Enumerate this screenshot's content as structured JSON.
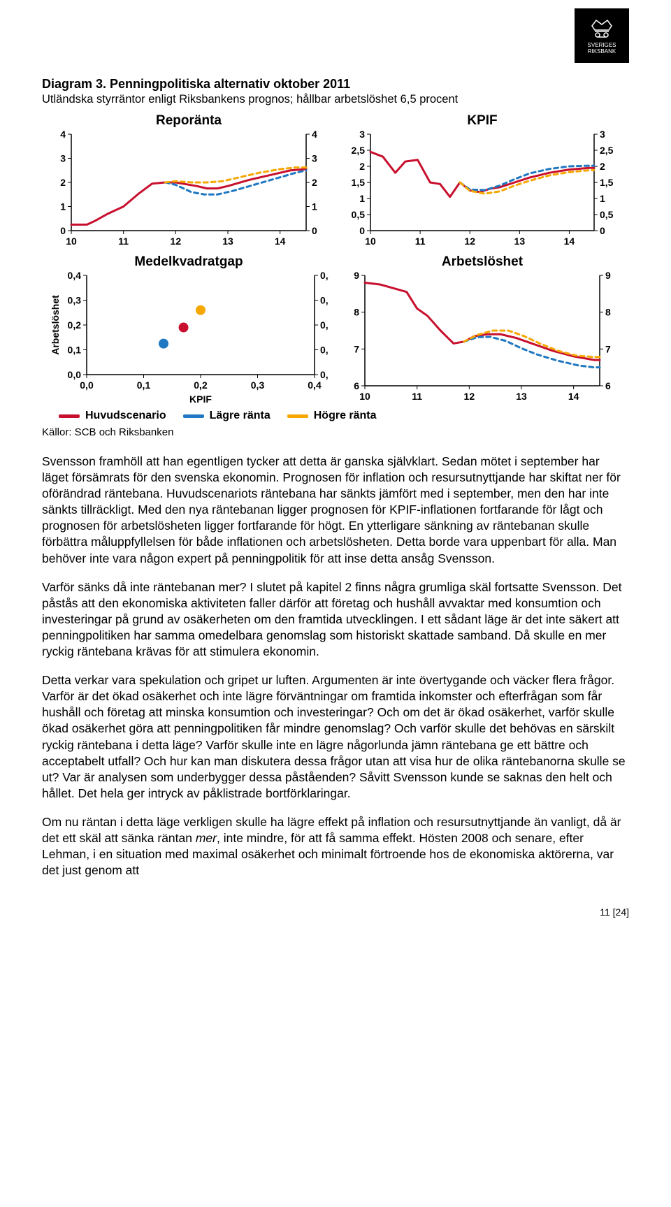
{
  "logo": {
    "line1": "SVERIGES",
    "line2": "RIKSBANK"
  },
  "figure_header": {
    "title": "Diagram 3. Penningpolitiska alternativ oktober 2011",
    "subtitle": "Utländska styrräntor enligt Riksbankens prognos; hållbar arbetslöshet 6,5 procent"
  },
  "legend": {
    "items": [
      {
        "label": "Huvudscenario",
        "color": "#c8102e"
      },
      {
        "label": "Lägre ränta",
        "color": "#1f78c1"
      },
      {
        "label": "Högre ränta",
        "color": "#f6a700"
      }
    ]
  },
  "sources": "Källor: SCB och Riksbanken",
  "charts": {
    "reporanta": {
      "title": "Reporänta",
      "type": "line",
      "xlim": [
        10,
        14.5
      ],
      "xticks": [
        10,
        11,
        12,
        13,
        14
      ],
      "ylim": [
        0,
        4
      ],
      "yticks": [
        0,
        1,
        2,
        3,
        4
      ],
      "axis_color": "#000000",
      "series": [
        {
          "name": "Huvudscenario",
          "color": "#c8102e",
          "dash": "",
          "width": 3,
          "pts": [
            [
              10,
              0.25
            ],
            [
              10.3,
              0.25
            ],
            [
              10.45,
              0.4
            ],
            [
              10.7,
              0.7
            ],
            [
              11,
              1.0
            ],
            [
              11.3,
              1.55
            ],
            [
              11.55,
              1.95
            ],
            [
              11.8,
              2.0
            ],
            [
              12,
              2.0
            ],
            [
              12.4,
              1.85
            ],
            [
              12.6,
              1.75
            ],
            [
              12.8,
              1.75
            ],
            [
              13,
              1.85
            ],
            [
              13.4,
              2.1
            ],
            [
              13.8,
              2.3
            ],
            [
              14.2,
              2.5
            ],
            [
              14.5,
              2.55
            ]
          ]
        },
        {
          "name": "Lägre ränta",
          "color": "#1f78c1",
          "dash": "6 5",
          "width": 3,
          "pts": [
            [
              11.8,
              2.0
            ],
            [
              12,
              1.9
            ],
            [
              12.3,
              1.6
            ],
            [
              12.55,
              1.5
            ],
            [
              12.8,
              1.5
            ],
            [
              13.1,
              1.65
            ],
            [
              13.5,
              1.9
            ],
            [
              13.9,
              2.15
            ],
            [
              14.3,
              2.4
            ],
            [
              14.5,
              2.5
            ]
          ]
        },
        {
          "name": "Högre ränta",
          "color": "#f6a700",
          "dash": "6 5",
          "width": 3,
          "pts": [
            [
              11.8,
              2.0
            ],
            [
              12,
              2.05
            ],
            [
              12.3,
              2.0
            ],
            [
              12.6,
              2.0
            ],
            [
              12.9,
              2.05
            ],
            [
              13.2,
              2.2
            ],
            [
              13.6,
              2.4
            ],
            [
              14.0,
              2.55
            ],
            [
              14.3,
              2.62
            ],
            [
              14.5,
              2.62
            ]
          ]
        }
      ]
    },
    "kpif": {
      "title": "KPIF",
      "type": "line",
      "xlim": [
        10,
        14.5
      ],
      "xticks": [
        10,
        11,
        12,
        13,
        14
      ],
      "ylim": [
        0,
        3
      ],
      "yticks": [
        0,
        0.5,
        1,
        1.5,
        2,
        2.5,
        3
      ],
      "axis_color": "#000000",
      "series": [
        {
          "name": "Huvudscenario",
          "color": "#c8102e",
          "dash": "",
          "width": 3,
          "pts": [
            [
              10,
              2.45
            ],
            [
              10.25,
              2.3
            ],
            [
              10.5,
              1.8
            ],
            [
              10.7,
              2.15
            ],
            [
              10.95,
              2.2
            ],
            [
              11.2,
              1.5
            ],
            [
              11.4,
              1.45
            ],
            [
              11.6,
              1.05
            ],
            [
              11.8,
              1.5
            ],
            [
              12,
              1.25
            ],
            [
              12.2,
              1.2
            ],
            [
              12.4,
              1.3
            ],
            [
              12.6,
              1.35
            ],
            [
              12.9,
              1.5
            ],
            [
              13.2,
              1.65
            ],
            [
              13.6,
              1.8
            ],
            [
              14.0,
              1.9
            ],
            [
              14.4,
              1.95
            ],
            [
              14.5,
              1.95
            ]
          ]
        },
        {
          "name": "Lägre ränta",
          "color": "#1f78c1",
          "dash": "6 5",
          "width": 3,
          "pts": [
            [
              11.8,
              1.5
            ],
            [
              12,
              1.28
            ],
            [
              12.3,
              1.26
            ],
            [
              12.6,
              1.4
            ],
            [
              12.9,
              1.6
            ],
            [
              13.2,
              1.78
            ],
            [
              13.6,
              1.92
            ],
            [
              14.0,
              2.0
            ],
            [
              14.4,
              2.02
            ],
            [
              14.5,
              2.02
            ]
          ]
        },
        {
          "name": "Högre ränta",
          "color": "#f6a700",
          "dash": "6 5",
          "width": 3,
          "pts": [
            [
              11.8,
              1.5
            ],
            [
              12,
              1.24
            ],
            [
              12.3,
              1.15
            ],
            [
              12.6,
              1.22
            ],
            [
              12.9,
              1.4
            ],
            [
              13.2,
              1.55
            ],
            [
              13.6,
              1.72
            ],
            [
              14.0,
              1.82
            ],
            [
              14.4,
              1.88
            ],
            [
              14.5,
              1.88
            ]
          ]
        }
      ]
    },
    "medelkvadratgap": {
      "title": "Medelkvadratgap",
      "type": "scatter",
      "y_axis_title": "Arbetslöshet",
      "x_axis_title": "KPIF",
      "xlim": [
        0,
        0.4
      ],
      "xticks": [
        0.0,
        0.1,
        0.2,
        0.3,
        0.4
      ],
      "xtick_labels": [
        "0,0",
        "0,1",
        "0,2",
        "0,3",
        "0,4"
      ],
      "ylim": [
        0,
        0.4
      ],
      "yticks": [
        0.0,
        0.1,
        0.2,
        0.3,
        0.4
      ],
      "ytick_labels": [
        "0,0",
        "0,1",
        "0,2",
        "0,3",
        "0,4"
      ],
      "axis_color": "#000000",
      "points": [
        {
          "color": "#c8102e",
          "x": 0.17,
          "y": 0.19,
          "r": 7
        },
        {
          "color": "#1f78c1",
          "x": 0.135,
          "y": 0.125,
          "r": 7
        },
        {
          "color": "#f6a700",
          "x": 0.2,
          "y": 0.26,
          "r": 7
        }
      ]
    },
    "arbetsloshet": {
      "title": "Arbetslöshet",
      "type": "line",
      "xlim": [
        10,
        14.5
      ],
      "xticks": [
        10,
        11,
        12,
        13,
        14
      ],
      "ylim": [
        6,
        9
      ],
      "yticks": [
        6,
        7,
        8,
        9
      ],
      "axis_color": "#000000",
      "series": [
        {
          "name": "Huvudscenario",
          "color": "#c8102e",
          "dash": "",
          "width": 3,
          "pts": [
            [
              10,
              8.8
            ],
            [
              10.3,
              8.75
            ],
            [
              10.55,
              8.65
            ],
            [
              10.8,
              8.55
            ],
            [
              11.0,
              8.1
            ],
            [
              11.2,
              7.9
            ],
            [
              11.45,
              7.5
            ],
            [
              11.7,
              7.15
            ],
            [
              11.9,
              7.2
            ],
            [
              12.1,
              7.35
            ],
            [
              12.35,
              7.4
            ],
            [
              12.6,
              7.4
            ],
            [
              12.9,
              7.3
            ],
            [
              13.2,
              7.15
            ],
            [
              13.6,
              6.95
            ],
            [
              14.0,
              6.8
            ],
            [
              14.4,
              6.7
            ],
            [
              14.5,
              6.7
            ]
          ]
        },
        {
          "name": "Lägre ränta",
          "color": "#1f78c1",
          "dash": "6 5",
          "width": 3,
          "pts": [
            [
              11.9,
              7.2
            ],
            [
              12.15,
              7.32
            ],
            [
              12.4,
              7.33
            ],
            [
              12.7,
              7.22
            ],
            [
              13.0,
              7.02
            ],
            [
              13.3,
              6.85
            ],
            [
              13.7,
              6.68
            ],
            [
              14.1,
              6.55
            ],
            [
              14.4,
              6.5
            ],
            [
              14.5,
              6.5
            ]
          ]
        },
        {
          "name": "Högre ränta",
          "color": "#f6a700",
          "dash": "6 5",
          "width": 3,
          "pts": [
            [
              11.9,
              7.2
            ],
            [
              12.15,
              7.38
            ],
            [
              12.45,
              7.5
            ],
            [
              12.75,
              7.5
            ],
            [
              13.05,
              7.35
            ],
            [
              13.35,
              7.15
            ],
            [
              13.7,
              6.95
            ],
            [
              14.05,
              6.82
            ],
            [
              14.4,
              6.78
            ],
            [
              14.5,
              6.78
            ]
          ]
        }
      ]
    }
  },
  "paragraphs": {
    "p1": "Svensson framhöll att han egentligen tycker att detta är ganska självklart. Sedan mötet i september har läget försämrats för den svenska ekonomin. Prognosen för inflation och resursutnyttjande har skiftat ner för oförändrad räntebana. Huvudscenariots räntebana har sänkts jämfört med i september, men den har inte sänkts tillräckligt. Med den nya räntebanan ligger prognosen för KPIF-inflationen fortfarande för lågt och prognosen för arbetslösheten ligger fortfarande för högt. En ytterligare sänkning av räntebanan skulle förbättra måluppfyllelsen för både inflationen och arbetslösheten. Detta borde vara uppenbart för alla. Man behöver inte vara någon expert på penningpolitik för att inse detta ansåg Svensson.",
    "p2": "Varför sänks då inte räntebanan mer? I slutet på kapitel 2 finns några grumliga skäl fortsatte Svensson. Det påstås att den ekonomiska aktiviteten faller därför att företag och hushåll avvaktar med konsumtion och investeringar på grund av osäkerheten om den framtida utvecklingen. I ett sådant läge är det inte säkert att penningpolitiken har samma omedelbara genomslag som historiskt skattade samband. Då skulle en mer ryckig räntebana krävas för att stimulera ekonomin.",
    "p3": "Detta verkar vara spekulation och gripet ur luften. Argumenten är inte övertygande och väcker flera frågor. Varför är det ökad osäkerhet och inte lägre förväntningar om framtida inkomster och efterfrågan som får hushåll och företag att minska konsumtion och investeringar? Och om det är ökad osäkerhet, varför skulle ökad osäkerhet göra att penningpolitiken får mindre genomslag? Och varför skulle det behövas en särskilt ryckig räntebana i detta läge? Varför skulle inte en lägre någorlunda jämn räntebana ge ett bättre och acceptabelt utfall? Och hur kan man diskutera dessa frågor utan att visa hur de olika räntebanorna skulle se ut? Var är analysen som underbygger dessa påståenden? Såvitt Svensson kunde se saknas den helt och hållet. Det hela ger intryck av påklistrade bortförklaringar.",
    "p4_pre": "Om nu räntan i detta läge verkligen skulle ha lägre effekt på inflation och resursutnyttjande än vanligt, då är det ett skäl att sänka räntan ",
    "p4_em": "mer",
    "p4_post": ", inte mindre, för att få samma effekt. Hösten 2008 och senare, efter Lehman, i en situation med maximal osäkerhet och minimalt förtroende hos de ekonomiska aktörerna, var det just genom att"
  },
  "page_number": "11 [24]"
}
